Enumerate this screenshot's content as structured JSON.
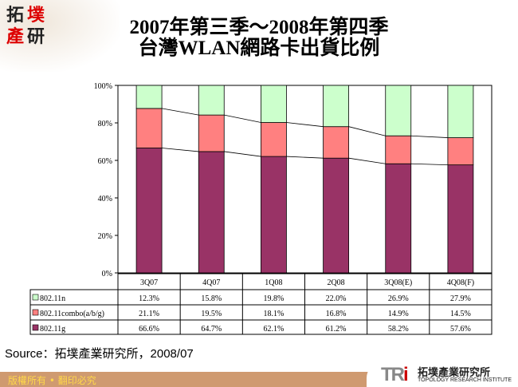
{
  "logo": {
    "chars": [
      "拓",
      "墣",
      "產",
      "研"
    ]
  },
  "title_line1": "2007年第三季～2008年第四季",
  "title_line2": "台灣WLAN網路卡出貨比例",
  "source": "Source：拓墣產業研究所，2008/07",
  "footer": {
    "copyright": "版權所有 • 翻印必究",
    "org_abbr_1": "TR",
    "org_abbr_2": "i",
    "org_name": "拓墣產業研究所",
    "org_name_en": "TOPOLOGY RESEARCH INSTITUTE"
  },
  "chart_data": {
    "type": "bar",
    "stacked": true,
    "title": "2007年第三季～2008年第四季 台灣WLAN網路卡出貨比例",
    "categories": [
      "3Q07",
      "4Q07",
      "1Q08",
      "2Q08",
      "3Q08(E)",
      "4Q08(F)"
    ],
    "ylim": [
      0,
      100
    ],
    "yticks": [
      "0%",
      "20%",
      "40%",
      "60%",
      "80%",
      "100%"
    ],
    "series": [
      {
        "name": "802.11g",
        "color": "#993366",
        "values": [
          66.6,
          64.7,
          62.1,
          61.2,
          58.2,
          57.6
        ],
        "labels": [
          "66.6%",
          "64.7%",
          "62.1%",
          "61.2%",
          "58.2%",
          "57.6%"
        ]
      },
      {
        "name": "802.11combo(a/b/g)",
        "color": "#FF8080",
        "values": [
          21.1,
          19.5,
          18.1,
          16.8,
          14.9,
          14.5
        ],
        "labels": [
          "21.1%",
          "19.5%",
          "18.1%",
          "16.8%",
          "14.9%",
          "14.5%"
        ]
      },
      {
        "name": "802.11n",
        "color": "#CCFFCC",
        "values": [
          12.3,
          15.8,
          19.8,
          22.0,
          26.9,
          27.9
        ],
        "labels": [
          "12.3%",
          "15.8%",
          "19.8%",
          "22.0%",
          "26.9%",
          "27.9%"
        ]
      }
    ],
    "table_order": [
      "802.11n",
      "802.11combo(a/b/g)",
      "802.11g"
    ],
    "legend": "data-table"
  }
}
